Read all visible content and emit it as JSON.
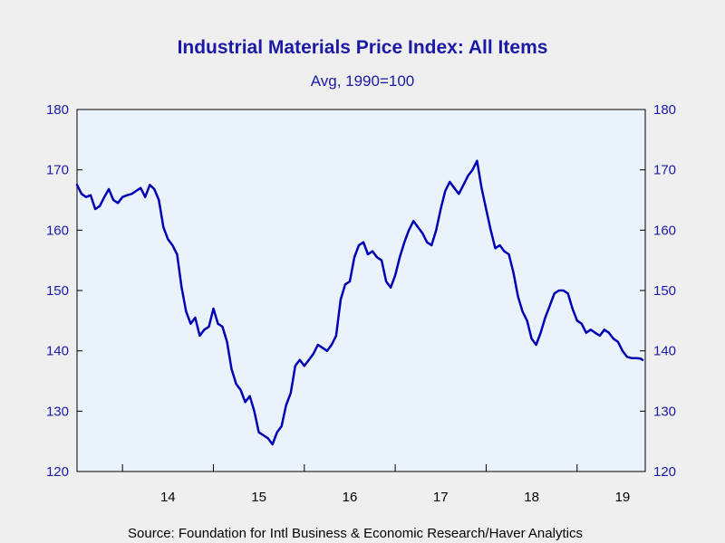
{
  "chart_data": {
    "type": "line",
    "title": "Industrial Materials Price Index: All Items",
    "subtitle": "Avg, 1990=100",
    "source": "Source:  Foundation for Intl Business & Economic Research/Haver Analytics",
    "xlabel": "",
    "ylabel": "",
    "ylim": [
      120,
      180
    ],
    "yticks": [
      120,
      130,
      140,
      150,
      160,
      170,
      180
    ],
    "xlim": [
      2013.5,
      2019.75
    ],
    "xtick_positions": [
      2014,
      2015,
      2016,
      2017,
      2018,
      2019
    ],
    "year_labels": [
      "14",
      "15",
      "16",
      "17",
      "18",
      "19"
    ],
    "grid": false,
    "line_color": "#0000b4",
    "plot_background": "#eaf2fb",
    "axis_color": "#000000",
    "series": [
      {
        "x": [
          2013.5,
          2013.55,
          2013.6,
          2013.65,
          2013.7,
          2013.75,
          2013.8,
          2013.85,
          2013.9,
          2013.95,
          2014.0,
          2014.05,
          2014.1,
          2014.15,
          2014.2,
          2014.25,
          2014.3,
          2014.35,
          2014.4,
          2014.45,
          2014.5,
          2014.55,
          2014.6,
          2014.65,
          2014.7,
          2014.75,
          2014.8,
          2014.85,
          2014.9,
          2014.95,
          2015.0,
          2015.05,
          2015.1,
          2015.15,
          2015.2,
          2015.25,
          2015.3,
          2015.35,
          2015.4,
          2015.45,
          2015.5,
          2015.55,
          2015.6,
          2015.65,
          2015.7,
          2015.75,
          2015.8,
          2015.85,
          2015.9,
          2015.95,
          2016.0,
          2016.05,
          2016.1,
          2016.15,
          2016.2,
          2016.25,
          2016.3,
          2016.35,
          2016.4,
          2016.45,
          2016.5,
          2016.55,
          2016.6,
          2016.65,
          2016.7,
          2016.75,
          2016.8,
          2016.85,
          2016.9,
          2016.95,
          2017.0,
          2017.05,
          2017.1,
          2017.15,
          2017.2,
          2017.25,
          2017.3,
          2017.35,
          2017.4,
          2017.45,
          2017.5,
          2017.55,
          2017.6,
          2017.65,
          2017.7,
          2017.75,
          2017.8,
          2017.85,
          2017.9,
          2017.95,
          2018.0,
          2018.05,
          2018.1,
          2018.15,
          2018.2,
          2018.25,
          2018.3,
          2018.35,
          2018.4,
          2018.45,
          2018.5,
          2018.55,
          2018.6,
          2018.65,
          2018.7,
          2018.75,
          2018.8,
          2018.85,
          2018.9,
          2018.95,
          2019.0,
          2019.05,
          2019.1,
          2019.15,
          2019.2,
          2019.25,
          2019.3,
          2019.35,
          2019.4,
          2019.45,
          2019.5,
          2019.55,
          2019.6,
          2019.65,
          2019.7,
          2019.72
        ],
        "values": [
          167.5,
          166.0,
          165.5,
          165.8,
          163.5,
          164.0,
          165.5,
          166.8,
          165.0,
          164.5,
          165.5,
          165.8,
          166.0,
          166.5,
          167.0,
          165.5,
          167.5,
          166.8,
          165.0,
          160.5,
          158.5,
          157.5,
          156.0,
          150.5,
          146.5,
          144.5,
          145.5,
          142.5,
          143.5,
          144.0,
          147.0,
          144.5,
          144.0,
          141.5,
          137.0,
          134.5,
          133.5,
          131.5,
          132.5,
          130.0,
          126.5,
          126.0,
          125.5,
          124.5,
          126.5,
          127.5,
          131.0,
          133.0,
          137.5,
          138.5,
          137.5,
          138.5,
          139.5,
          141.0,
          140.5,
          140.0,
          141.0,
          142.5,
          148.5,
          151.0,
          151.5,
          155.5,
          157.5,
          158.0,
          156.0,
          156.5,
          155.5,
          155.0,
          151.5,
          150.5,
          152.5,
          155.5,
          158.0,
          160.0,
          161.5,
          160.5,
          159.5,
          158.0,
          157.5,
          160.0,
          163.5,
          166.5,
          168.0,
          167.0,
          166.0,
          167.5,
          169.0,
          170.0,
          171.5,
          167.0,
          163.5,
          160.0,
          157.0,
          157.5,
          156.5,
          156.0,
          153.0,
          149.0,
          146.5,
          145.0,
          142.0,
          141.0,
          143.0,
          145.5,
          147.5,
          149.5,
          150.0,
          150.0,
          149.5,
          147.0,
          145.0,
          144.5,
          143.0,
          143.5,
          143.0,
          142.5,
          143.5,
          143.0,
          142.0,
          141.5,
          140.0,
          139.0,
          138.8,
          138.8,
          138.7,
          138.5
        ]
      }
    ]
  }
}
